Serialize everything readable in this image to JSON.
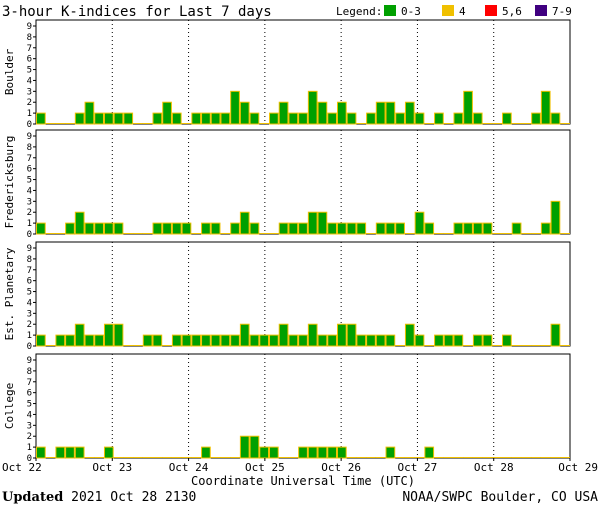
{
  "header": {
    "title": "3-hour K-indices for Last 7 days",
    "legend_label": "Legend:",
    "legend": [
      {
        "label": "0-3",
        "color": "#00a000",
        "icon": "green-swatch"
      },
      {
        "label": "4",
        "color": "#f0c000",
        "icon": "yellow-swatch"
      },
      {
        "label": "5,6",
        "color": "#ff0000",
        "icon": "red-swatch"
      },
      {
        "label": "7-9",
        "color": "#400080",
        "icon": "purple-swatch"
      }
    ]
  },
  "footer": {
    "updated_label": "Updated",
    "updated_value": "2021 Oct 28 2130",
    "source": "NOAA/SWPC Boulder, CO USA"
  },
  "chart_data": {
    "type": "bar",
    "title": "3-hour K-indices for Last 7 days",
    "xlabel": "Coordinate Universal Time (UTC)",
    "x_tick_labels": [
      "Oct 22",
      "Oct 23",
      "Oct 24",
      "Oct 25",
      "Oct 26",
      "Oct 27",
      "Oct 28",
      "Oct 29"
    ],
    "y_ticks": [
      "0",
      "1",
      "2",
      "3",
      "4",
      "5",
      "6",
      "7",
      "8",
      "9"
    ],
    "ylim": [
      0,
      9
    ],
    "grid": "vertical dotted lines at day boundaries",
    "bar_fill": "#00a000",
    "bar_outline": "#f0c000",
    "series": [
      {
        "name": "Boulder",
        "values": [
          1,
          0,
          0,
          0,
          1,
          2,
          1,
          1,
          1,
          1,
          0,
          0,
          1,
          2,
          1,
          0,
          1,
          1,
          1,
          1,
          3,
          2,
          1,
          0,
          1,
          2,
          1,
          1,
          3,
          2,
          1,
          2,
          1,
          0,
          1,
          2,
          2,
          1,
          2,
          1,
          0,
          1,
          0,
          1,
          3,
          1,
          0,
          0,
          1,
          0,
          0,
          1,
          3,
          1,
          0
        ]
      },
      {
        "name": "Fredericksburg",
        "values": [
          1,
          0,
          0,
          1,
          2,
          1,
          1,
          1,
          1,
          0,
          0,
          0,
          1,
          1,
          1,
          1,
          0,
          1,
          1,
          0,
          1,
          2,
          1,
          0,
          0,
          1,
          1,
          1,
          2,
          2,
          1,
          1,
          1,
          1,
          0,
          1,
          1,
          1,
          0,
          2,
          1,
          0,
          0,
          1,
          1,
          1,
          1,
          0,
          0,
          1,
          0,
          0,
          1,
          3,
          0
        ]
      },
      {
        "name": "Est. Planetary",
        "values": [
          1,
          0,
          1,
          1,
          2,
          1,
          1,
          2,
          2,
          0,
          0,
          1,
          1,
          0,
          1,
          1,
          1,
          1,
          1,
          1,
          1,
          2,
          1,
          1,
          1,
          2,
          1,
          1,
          2,
          1,
          1,
          2,
          2,
          1,
          1,
          1,
          1,
          0,
          2,
          1,
          0,
          1,
          1,
          1,
          0,
          1,
          1,
          0,
          1,
          0,
          0,
          0,
          0,
          2,
          0
        ]
      },
      {
        "name": "College",
        "values": [
          1,
          0,
          1,
          1,
          1,
          0,
          0,
          1,
          0,
          0,
          0,
          0,
          0,
          0,
          0,
          0,
          0,
          1,
          0,
          0,
          0,
          2,
          2,
          1,
          1,
          0,
          0,
          1,
          1,
          1,
          1,
          1,
          0,
          0,
          0,
          0,
          1,
          0,
          0,
          0,
          1,
          0,
          0,
          0,
          0,
          0,
          0,
          0,
          0,
          0,
          0,
          0,
          0,
          0,
          0
        ]
      }
    ]
  }
}
